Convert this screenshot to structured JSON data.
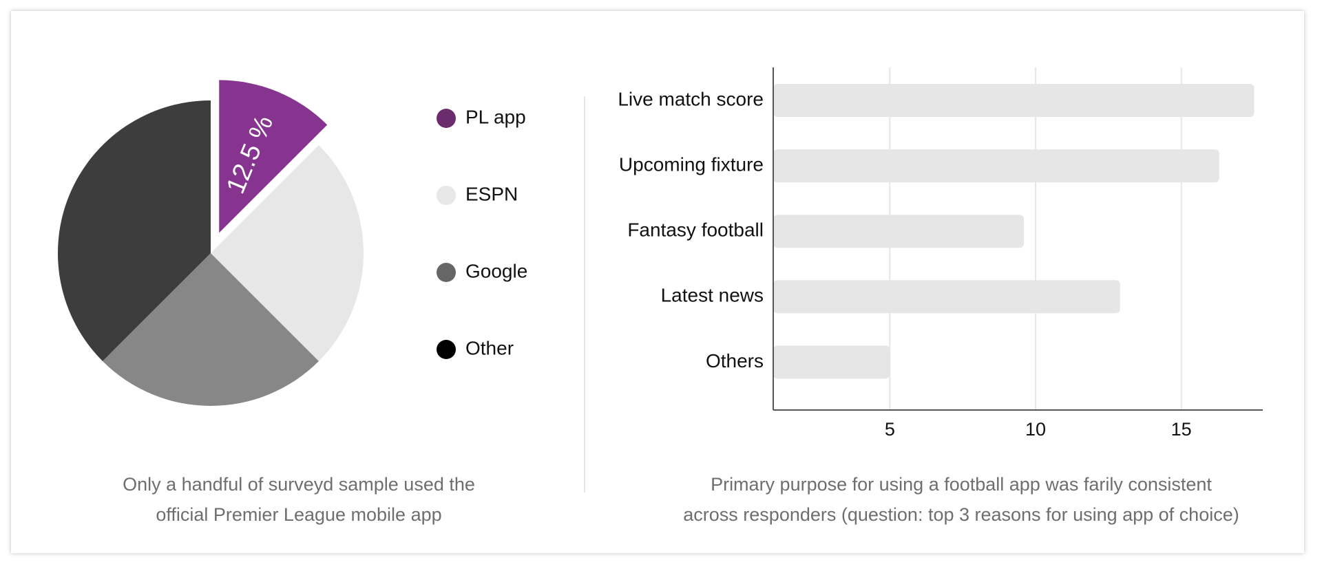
{
  "colors": {
    "pl_app": "#873491",
    "legend_pl_app": "#6b2c6e",
    "espn": "#e7e7e7",
    "google": "#878787",
    "google_legend": "#666666",
    "other": "#3d3d3d",
    "other_legend": "#000000",
    "bar": "#e6e6e6",
    "grid": "#e6e6e6",
    "axis": "#555555",
    "text": "#111111",
    "caption": "#6e6e6e"
  },
  "chart_data": [
    {
      "type": "pie",
      "slices": [
        {
          "label": "PL app",
          "value": 12.5,
          "data_label": "12.5 %",
          "exploded": true
        },
        {
          "label": "ESPN",
          "value": 25
        },
        {
          "label": "Google",
          "value": 25
        },
        {
          "label": "Other",
          "value": 37.5
        }
      ],
      "legend": [
        "PL app",
        "ESPN",
        "Google",
        "Other"
      ],
      "legend_position": "right",
      "caption": [
        "Only a handful of surveyd sample used the",
        "official Premier League mobile app"
      ]
    },
    {
      "type": "bar",
      "orientation": "horizontal",
      "categories": [
        "Live match score",
        "Upcoming fixture",
        "Fantasy football",
        "Latest news",
        "Others"
      ],
      "values": [
        17.5,
        16.3,
        9.6,
        12.9,
        5
      ],
      "xlim": [
        1,
        17.7
      ],
      "xticks": [
        "5",
        "10",
        "15"
      ],
      "grid": true,
      "caption": [
        "Primary purpose for using a football app was farily consistent",
        "across responders (question: top 3 reasons for using app of choice)"
      ]
    }
  ]
}
